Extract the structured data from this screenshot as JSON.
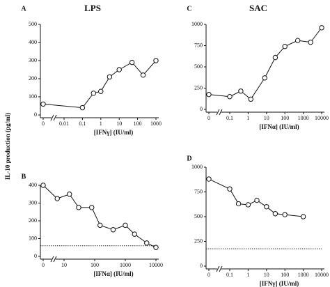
{
  "y_label": "IL-10 production (pg/ml)",
  "chart_data": [
    {
      "type": "line",
      "panel": "A",
      "title": "LPS",
      "xlabel": "[IFNγ] (IU/ml)",
      "xscale": "log",
      "x": [
        0,
        0.1,
        0.4,
        1,
        3,
        10,
        50,
        200,
        1000
      ],
      "series": [
        {
          "color": "#111111",
          "values": [
            60,
            40,
            120,
            130,
            210,
            250,
            290,
            220,
            300
          ]
        }
      ],
      "xlim": [
        0,
        1000
      ],
      "xticks": [
        0,
        0.01,
        0.1,
        1,
        10,
        100,
        1000
      ],
      "ylim": [
        0,
        500
      ],
      "yticks": [
        0,
        100,
        200,
        300,
        400,
        500
      ]
    },
    {
      "type": "line",
      "panel": "B",
      "xlabel": "[IFNα] (IU/ml)",
      "xscale": "log",
      "x": [
        0,
        6,
        15,
        30,
        80,
        150,
        400,
        1000,
        2000,
        5000,
        10000
      ],
      "series": [
        {
          "color": "#111111",
          "values": [
            400,
            325,
            350,
            275,
            275,
            175,
            150,
            175,
            125,
            75,
            50
          ]
        }
      ],
      "reference_line": 60,
      "xlim": [
        0,
        10000
      ],
      "xticks": [
        0,
        10,
        100,
        1000,
        10000
      ],
      "ylim": [
        0,
        400
      ],
      "yticks": [
        0,
        100,
        200,
        300,
        400
      ]
    },
    {
      "type": "line",
      "panel": "C",
      "title": "SAC",
      "xlabel": "[IFNα] (IU/ml)",
      "xscale": "log",
      "x": [
        0,
        0.1,
        0.4,
        1.4,
        8,
        30,
        100,
        500,
        2500,
        10000
      ],
      "series": [
        {
          "color": "#111111",
          "values": [
            175,
            150,
            215,
            120,
            370,
            610,
            740,
            810,
            790,
            960
          ]
        }
      ],
      "xlim": [
        0,
        10000
      ],
      "xticks": [
        0,
        0.1,
        1,
        10,
        100,
        1000,
        10000
      ],
      "ylim": [
        0,
        1000
      ],
      "yticks": [
        0,
        250,
        500,
        750,
        1000
      ]
    },
    {
      "type": "line",
      "panel": "D",
      "xlabel": "[IFNγ] (IU/ml)",
      "xscale": "log",
      "x": [
        0,
        0.1,
        0.3,
        1,
        3,
        10,
        30,
        100,
        1000
      ],
      "series": [
        {
          "color": "#111111",
          "values": [
            880,
            780,
            630,
            620,
            665,
            600,
            530,
            520,
            500
          ]
        }
      ],
      "reference_line": 175,
      "xlim": [
        0,
        10000
      ],
      "xticks": [
        0,
        0.1,
        1,
        10,
        100,
        1000,
        10000
      ],
      "ylim": [
        0,
        1000
      ],
      "yticks": [
        0,
        250,
        500,
        750,
        1000
      ]
    }
  ]
}
